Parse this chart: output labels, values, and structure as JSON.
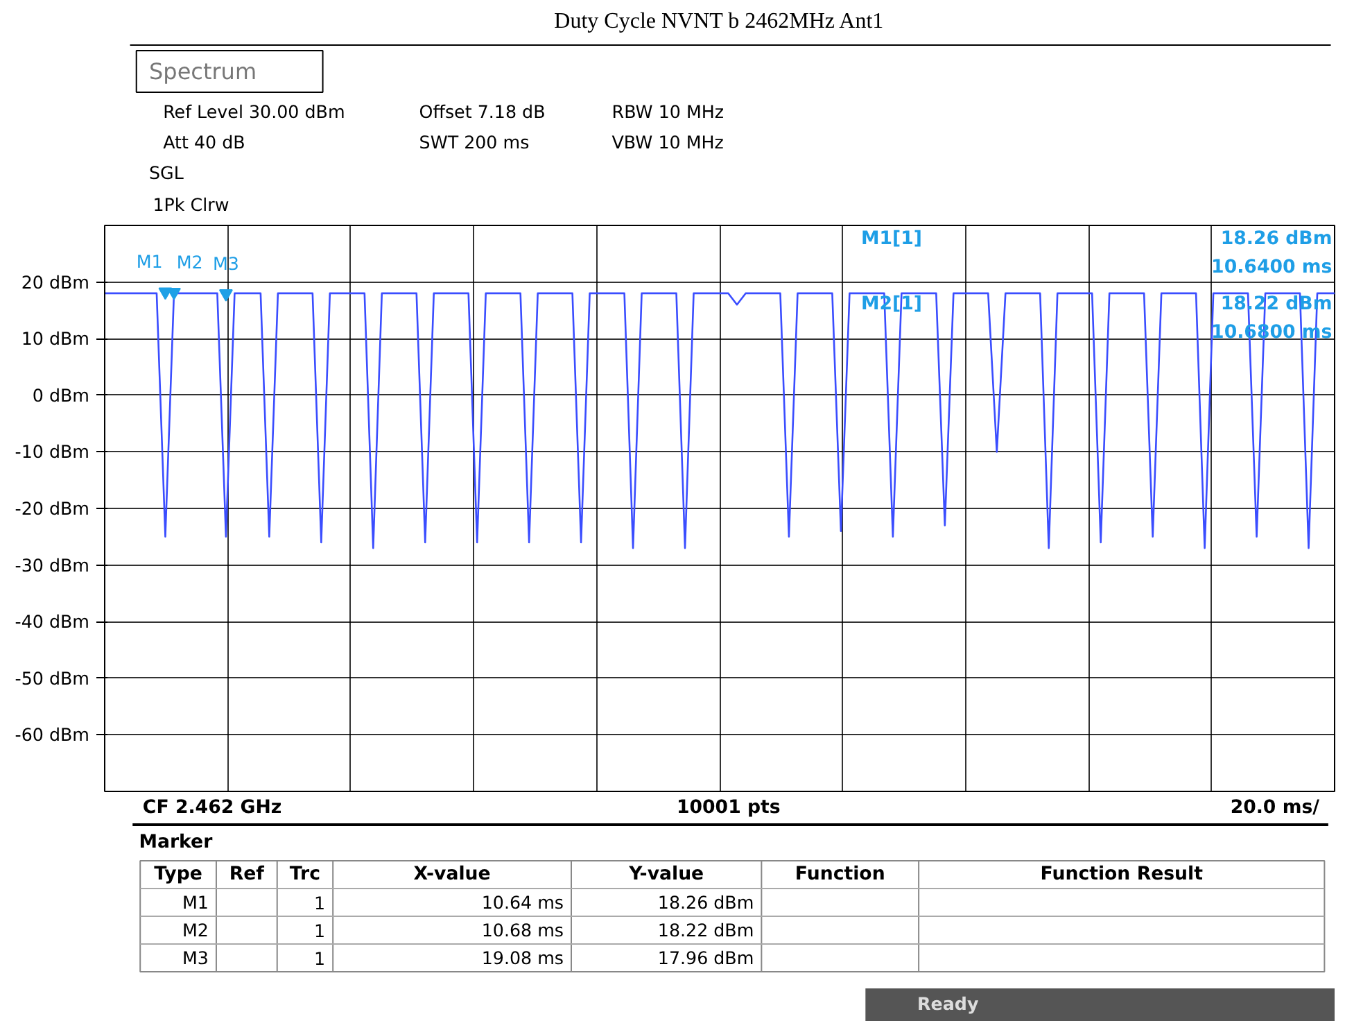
{
  "chart_data": {
    "type": "line",
    "title": "Duty Cycle NVNT b 2462MHz Ant1",
    "categories": [
      null,
      null,
      null,
      null,
      null,
      null,
      null,
      null,
      null,
      null,
      null,
      null,
      null,
      null,
      null,
      null,
      null,
      null,
      null,
      null,
      null,
      null,
      null,
      null,
      null,
      null,
      null,
      null,
      null,
      null,
      null,
      null,
      null,
      null,
      null,
      null,
      null,
      null,
      null,
      null,
      null,
      null,
      null,
      null,
      null,
      null,
      null,
      null,
      null,
      null,
      null,
      null,
      null,
      null,
      null,
      null,
      null,
      null,
      null,
      null,
      null,
      null,
      null,
      null,
      null,
      null,
      null,
      null,
      null,
      null,
      null,
      null,
      null,
      null,
      null,
      null,
      null,
      null,
      null,
      null,
      null,
      null,
      null,
      null,
      null,
      null,
      null,
      null,
      null,
      null,
      null,
      null,
      null,
      null,
      null,
      null,
      null,
      null,
      null,
      null,
      null,
      null,
      null,
      null,
      null,
      null,
      null,
      null,
      null,
      null,
      null,
      null,
      null,
      null,
      null,
      null,
      null,
      null,
      null,
      null,
      null,
      null,
      null,
      null,
      null,
      null,
      null,
      null,
      null,
      null,
      null,
      null,
      null,
      null,
      null,
      null,
      null,
      null,
      null,
      null,
      null,
      null,
      null
    ],
    "ylim": [
      -70,
      30
    ],
    "yticks": [
      {
        "value": -60,
        "label": "-60 dBm"
      },
      {
        "value": -50,
        "label": "-50 dBm"
      },
      {
        "value": -40,
        "label": "-40 dBm"
      },
      {
        "value": -30,
        "label": "-30 dBm"
      },
      {
        "value": -20,
        "label": "-20 dBm"
      },
      {
        "value": -10,
        "label": "-10 dBm"
      },
      {
        "value": 0,
        "label": "0 dBm"
      },
      {
        "value": 10,
        "label": "10 dBm"
      },
      {
        "value": 20,
        "label": "20 dBm"
      }
    ],
    "tick_labels": "y",
    "grid": true,
    "series": [
      {
        "color": "#3a4dff",
        "line_style": "solid",
        "marker": "none",
        "values": [
          18,
          18,
          18,
          18,
          18,
          18,
          18,
          -25,
          18,
          18,
          18,
          18,
          18,
          18,
          -25,
          18,
          18,
          18,
          18,
          -25,
          18,
          18,
          18,
          18,
          18,
          -26,
          18,
          18,
          18,
          18,
          18,
          -27,
          18,
          18,
          18,
          18,
          18,
          -26,
          18,
          18,
          18,
          18,
          18,
          -26,
          18,
          18,
          18,
          18,
          18,
          -26,
          18,
          18,
          18,
          18,
          18,
          -26,
          18,
          18,
          18,
          18,
          18,
          -27,
          18,
          18,
          18,
          18,
          18,
          -27,
          18,
          18,
          18,
          18,
          18,
          16,
          18,
          18,
          18,
          18,
          18,
          -25,
          18,
          18,
          18,
          18,
          18,
          -24,
          18,
          18,
          18,
          18,
          18,
          -25,
          18,
          18,
          18,
          18,
          18,
          -23,
          18,
          18,
          18,
          18,
          18,
          -10,
          18,
          18,
          18,
          18,
          18,
          -27,
          18,
          18,
          18,
          18,
          18,
          -26,
          18,
          18,
          18,
          18,
          18,
          -25,
          18,
          18,
          18,
          18,
          18,
          -27,
          18,
          18,
          18,
          18,
          18,
          -25,
          18,
          18,
          18,
          18,
          18,
          -27,
          18,
          18,
          18
        ]
      },
      {
        "type": "scatter",
        "color": "#1ea0e6",
        "marker": "triangle",
        "values": [
          null,
          null,
          null,
          null,
          null,
          null,
          null,
          18.26,
          18.22,
          null,
          null,
          null,
          null,
          null,
          17.96,
          null,
          null,
          null,
          null,
          null,
          null,
          null,
          null,
          null,
          null,
          null,
          null,
          null,
          null,
          null,
          null,
          null,
          null,
          null,
          null,
          null,
          null,
          null,
          null,
          null,
          null,
          null,
          null,
          null,
          null,
          null,
          null,
          null,
          null,
          null,
          null,
          null,
          null,
          null,
          null,
          null,
          null,
          null,
          null,
          null,
          null,
          null,
          null,
          null,
          null,
          null,
          null,
          null,
          null,
          null,
          null,
          null,
          null,
          null,
          null,
          null,
          null,
          null,
          null,
          null,
          null,
          null,
          null,
          null,
          null,
          null,
          null,
          null,
          null,
          null,
          null,
          null,
          null,
          null,
          null,
          null,
          null,
          null,
          null,
          null,
          null,
          null,
          null,
          null,
          null,
          null,
          null,
          null,
          null,
          null,
          null,
          null,
          null,
          null,
          null,
          null,
          null,
          null,
          null,
          null,
          null,
          null,
          null,
          null,
          null,
          null,
          null,
          null,
          null,
          null,
          null,
          null,
          null,
          null,
          null,
          null,
          null,
          null,
          null,
          null,
          null,
          null,
          null
        ]
      }
    ],
    "annotations": [
      "Spectrum",
      "Ref Level 30.00 dBm",
      "Offset 7.18 dB",
      "RBW 10 MHz",
      "Att 40 dB",
      "SWT 200 ms",
      "VBW 10 MHz",
      "SGL",
      "1Pk Clrw",
      "CF 2.462 GHz",
      "10001 pts",
      "20.0 ms/",
      "M1[1]",
      "18.26 dBm",
      "10.6400 ms",
      "M2[1]",
      "18.22 dBm",
      "10.6800 ms",
      "Marker",
      "Type",
      "Ref",
      "Trc",
      "X-value",
      "Y-value",
      "Function",
      "Function Result",
      "M1",
      "1",
      "10.64 ms",
      "18.26 dBm",
      "M2",
      "1",
      "10.68 ms",
      "18.22 dBm",
      "M3",
      "1",
      "19.08 ms",
      "17.96 dBm",
      "Ready",
      "M1",
      "M2",
      "M3"
    ]
  }
}
